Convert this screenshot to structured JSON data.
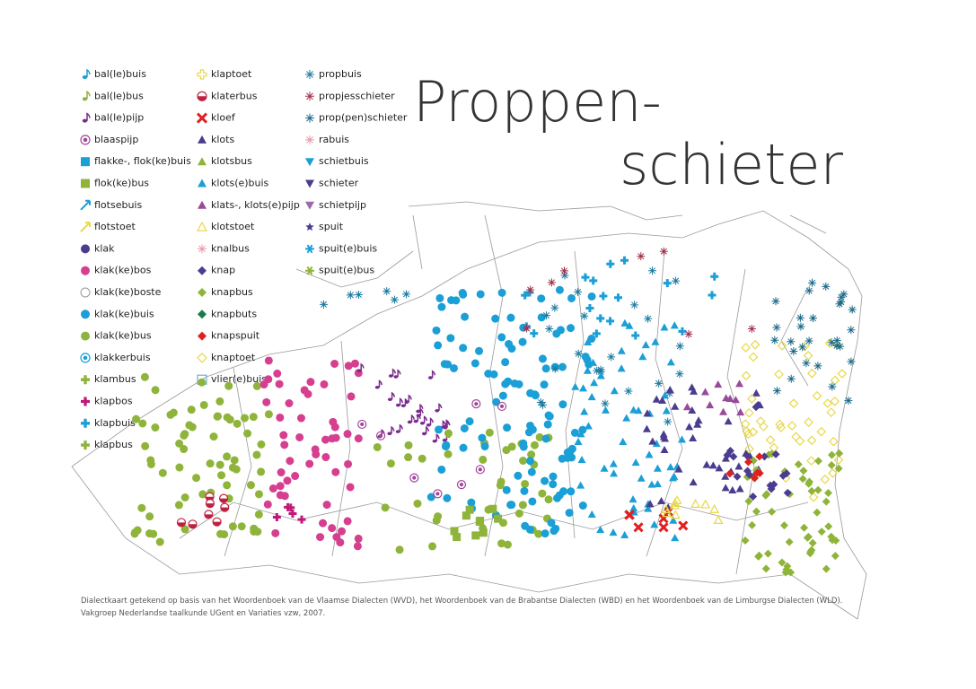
{
  "title": [
    "Proppen-",
    "schieter"
  ],
  "legend": [
    [
      "bal(le)buis",
      "bal(le)bus",
      "bal(le)pijp",
      "blaaspijp",
      "flakke-, flok(ke)buis",
      "flok(ke)bus",
      "flotsebuis",
      "flotstoet",
      "klak",
      "klak(ke)bos",
      "klak(ke)boste",
      "klak(ke)buis",
      "klak(ke)bus",
      "klakkerbuis",
      "klambus",
      "klapbos",
      "klapbuis",
      "klapbus"
    ],
    [
      "klaptoet",
      "klaterbus",
      "kloef",
      "klots",
      "klotsbus",
      "klots(e)buis",
      "klats-, klots(e)pijp",
      "klotstoet",
      "knalbus",
      "knap",
      "knapbus",
      "knapbuts",
      "knapspuit",
      "knaptoet",
      "vlier(e)buis"
    ],
    [
      "propbuis",
      "propjesschieter",
      "prop(pen)schieter",
      "rabuis",
      "schietbuis",
      "schieter",
      "schietpijp",
      "spuit",
      "spuit(e)buis",
      "spuit(e)bus"
    ]
  ],
  "footer": [
    "Dialectkaart getekend op basis van het Woordenboek van de Vlaamse Dialecten (WVD), het Woordenboek van de Brabantse Dialecten (WBD) en het Woordenboek van de Limburgse Dialecten (WLD).",
    "Vakgroep Nederlandse taalkunde UGent en Variaties vzw, 2007."
  ]
}
